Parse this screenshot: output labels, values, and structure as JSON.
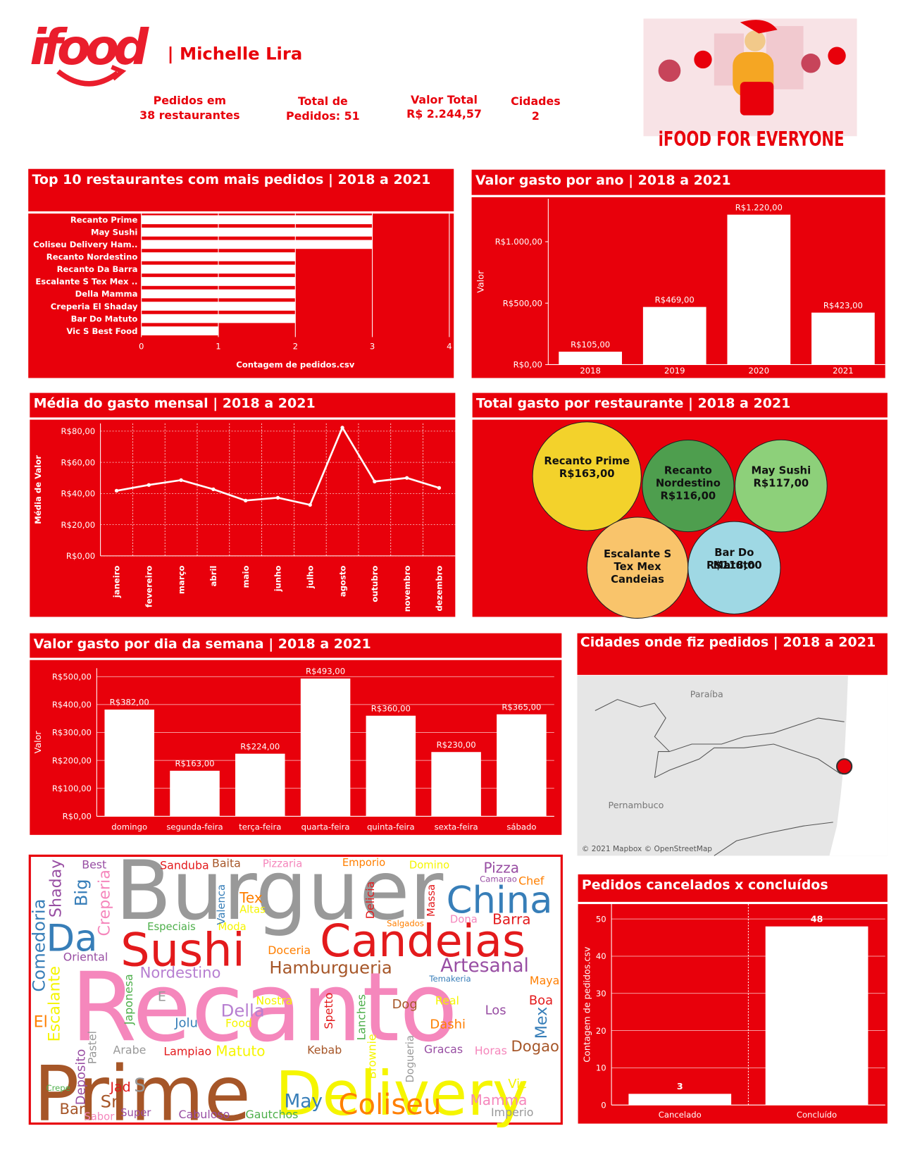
{
  "header": {
    "logo": "ifood",
    "name": "| Michelle Lira",
    "kpis": [
      [
        "Pedidos em",
        "38 restaurantes"
      ],
      [
        "Total de",
        "Pedidos: 51"
      ],
      [
        "Valor Total",
        "R$ 2.244,57"
      ],
      [
        "Cidades",
        "2"
      ]
    ],
    "banner": "iFOOD FOR EVERYONE"
  },
  "chart_data": [
    {
      "type": "hbar",
      "title": "Top 10 restaurantes com mais pedidos | 2018 a 2021",
      "categories": [
        "Recanto Prime",
        "May Sushi",
        "Coliseu Delivery Ham..",
        "Recanto Nordestino",
        "Recanto Da Barra",
        "Escalante S Tex Mex ..",
        "Della Mamma",
        "Creperia El Shaday",
        "Bar Do Matuto",
        "Vic S Best Food"
      ],
      "values": [
        3,
        3,
        3,
        2,
        2,
        2,
        2,
        2,
        2,
        1
      ],
      "color": "#ffffff",
      "xlim": [
        0,
        4
      ],
      "xticks": [
        0,
        1,
        2,
        3,
        4
      ],
      "x_label": "Contagem de pedidos.csv",
      "grid": true
    },
    {
      "type": "bar",
      "title": "Valor gasto por ano | 2018 a 2021",
      "categories": [
        "2018",
        "2019",
        "2020",
        "2021"
      ],
      "values": [
        105,
        469,
        1220,
        423
      ],
      "value_labels": [
        "R$105,00",
        "R$469,00",
        "R$1.220,00",
        "R$423,00"
      ],
      "color": "#ffffff",
      "y_label": "Valor",
      "ylim": [
        0,
        1350
      ],
      "yticks": [
        {
          "value": 0,
          "label": "R$0,00"
        },
        {
          "value": 500,
          "label": "R$500,00"
        },
        {
          "value": 1000,
          "label": "R$1.000,00"
        }
      ],
      "grid": false
    },
    {
      "type": "line",
      "title": "Média do gasto mensal | 2018 a 2021",
      "categories": [
        "janeiro",
        "fevereiro",
        "março",
        "abril",
        "maio",
        "junho",
        "julho",
        "agosto",
        "outubro",
        "novembro",
        "dezembro"
      ],
      "values": [
        41.8,
        45.5,
        48.6,
        42.7,
        35.5,
        37.3,
        32.7,
        82.3,
        47.7,
        50,
        43.6
      ],
      "color": "#ffffff",
      "y_label": "Média de Valor",
      "ylim": [
        0,
        85
      ],
      "yticks": [
        {
          "value": 0,
          "label": "R$0,00"
        },
        {
          "value": 20,
          "label": "R$20,00"
        },
        {
          "value": 40,
          "label": "R$40,00"
        },
        {
          "value": 60,
          "label": "R$60,00"
        },
        {
          "value": 80,
          "label": "R$80,00"
        }
      ],
      "grid": true
    },
    {
      "type": "bubble",
      "title": "Total gasto por restaurante | 2018 a 2021",
      "categories": [
        "Recanto Prime",
        "Recanto Nordestino",
        "May Sushi",
        "Escalante S Tex Mex Candeias",
        "Bar Do Matuto"
      ],
      "values": [
        163,
        116,
        117,
        141,
        118
      ],
      "value_labels": [
        "R$163,00",
        "R$116,00",
        "R$117,00",
        null,
        "R$118,00"
      ],
      "colors": [
        "#f3d22b",
        "#4e9e4e",
        "#8dd07a",
        "#f9c46b",
        "#9fd8e4"
      ]
    },
    {
      "type": "bar",
      "title": "Valor gasto por dia da semana | 2018 a 2021",
      "categories": [
        "domingo",
        "segunda-feira",
        "terça-feira",
        "quarta-feira",
        "quinta-feira",
        "sexta-feira",
        "sábado"
      ],
      "values": [
        382,
        163,
        224,
        493,
        360,
        230,
        365
      ],
      "value_labels": [
        "R$382,00",
        "R$163,00",
        "R$224,00",
        "R$493,00",
        "R$360,00",
        "R$230,00",
        "R$365,00"
      ],
      "color": "#ffffff",
      "y_label": "Valor",
      "ylim": [
        0,
        530
      ],
      "yticks": [
        {
          "value": 0,
          "label": "R$0,00"
        },
        {
          "value": 100,
          "label": "R$100,00"
        },
        {
          "value": 200,
          "label": "R$200,00"
        },
        {
          "value": 300,
          "label": "R$300,00"
        },
        {
          "value": 400,
          "label": "R$400,00"
        },
        {
          "value": 500,
          "label": "R$500,00"
        }
      ],
      "grid": true
    },
    {
      "type": "bar",
      "title": "Pedidos cancelados x concluídos",
      "categories": [
        "Cancelado",
        "Concluído"
      ],
      "values": [
        3,
        48
      ],
      "color": "#ffffff",
      "y_label": "Contagem de pedidos.csv",
      "ylim": [
        0,
        54
      ],
      "yticks": [
        0,
        10,
        20,
        30,
        40,
        50
      ],
      "grid": true
    }
  ],
  "map": {
    "title": "Cidades onde fiz pedidos | 2018 a 2021",
    "regions": [
      "Paraíba",
      "Pernambuco"
    ],
    "attribution": "© 2021 Mapbox © OpenStreetMap"
  },
  "word_cloud": {
    "words": [
      "Burguer",
      "Recanto",
      "Prime",
      "Delivery",
      "Sushi",
      "Candeias",
      "China",
      "Da",
      "Hamburgueria",
      "Artesanal",
      "Nordestino",
      "Coliseu",
      "May",
      "Mamma",
      "Imperio",
      "Gautchos",
      "Cabuloso",
      "Super",
      "Sabor",
      "Bar",
      "Sr",
      "Jad",
      "S",
      "Crepe",
      "Deposito",
      "Pastel",
      "Arabe",
      "Lampiao",
      "Matuto",
      "Kebab",
      "Brownie",
      "Dogueria",
      "Gracas",
      "Horas",
      "Dogao",
      "Vic",
      "El",
      "Escalante",
      "Comedoria",
      "Shaday",
      "Big",
      "Creperia",
      "Best",
      "Oriental",
      "Japonesa",
      "E",
      "Jolu",
      "Della",
      "Food",
      "Nostra",
      "Spetto",
      "Lanches",
      "Dog",
      "Real",
      "Dashi",
      "Los",
      "Boa",
      "Mex",
      "Maya",
      "Temakeria",
      "Doceria",
      "Especiais",
      "Moda",
      "Valenca",
      "Tex",
      "Altas",
      "Delicia",
      "Massa",
      "Salgados",
      "Dona",
      "Barra",
      "Sanduba",
      "Baita",
      "Pizzaria",
      "Emporio",
      "Domino",
      "Pizza",
      "Camarao",
      "Chef"
    ]
  }
}
